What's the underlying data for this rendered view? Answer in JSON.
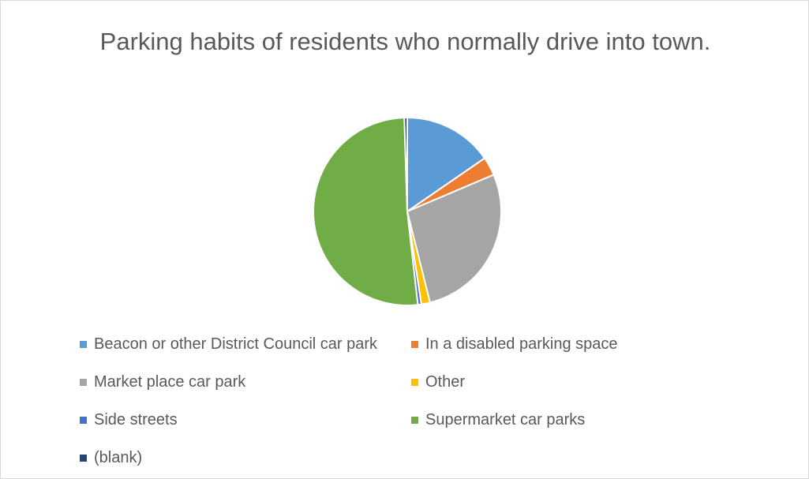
{
  "chart_data": {
    "type": "pie",
    "title": "Parking habits of residents who normally drive into town.",
    "legend_position": "bottom",
    "slices": [
      {
        "label": "Beacon or other District Council car park",
        "value": 15.4,
        "color": "#5b9bd5"
      },
      {
        "label": "In a disabled parking space",
        "value": 3.2,
        "color": "#ed7d31"
      },
      {
        "label": "Market place car park",
        "value": 27.5,
        "color": "#a5a5a5"
      },
      {
        "label": "Other",
        "value": 1.5,
        "color": "#ffc000"
      },
      {
        "label": "Side streets",
        "value": 0.6,
        "color": "#4472c4"
      },
      {
        "label": "Supermarket car parks",
        "value": 51.3,
        "color": "#70ad47"
      },
      {
        "label": "(blank)",
        "value": 0.5,
        "color": "#264478"
      }
    ]
  }
}
